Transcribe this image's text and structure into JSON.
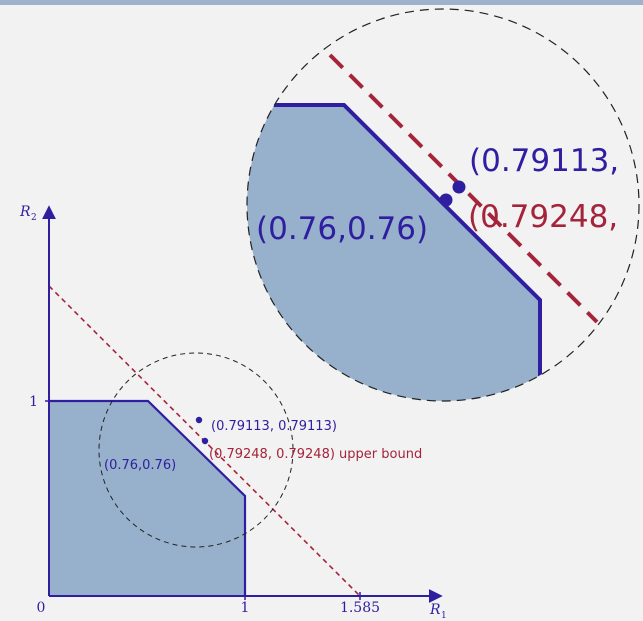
{
  "axes": {
    "x_label": "R",
    "x_label_sub": "1",
    "y_label": "R",
    "y_label_sub": "2",
    "origin_label": "0",
    "x_tick_1": "1",
    "x_tick_1585": "1.585",
    "y_tick_1": "1"
  },
  "annotations": {
    "point_076": "(0.76,0.76)",
    "point_079113": "(0.79113, 0.79113)",
    "upper_bound": "(0.79248, 0.79248) upper bound"
  },
  "zoom": {
    "point_076": "(0.76,0.76)",
    "point_079113": "(0.79113,",
    "upper_bound": "(0.79248,"
  },
  "colors": {
    "region_fill": "#97b1cc",
    "region_stroke": "#2f1ea0",
    "bound_line": "#a4243b",
    "axis": "#2f1ea0",
    "background": "#f2f2f2"
  }
}
